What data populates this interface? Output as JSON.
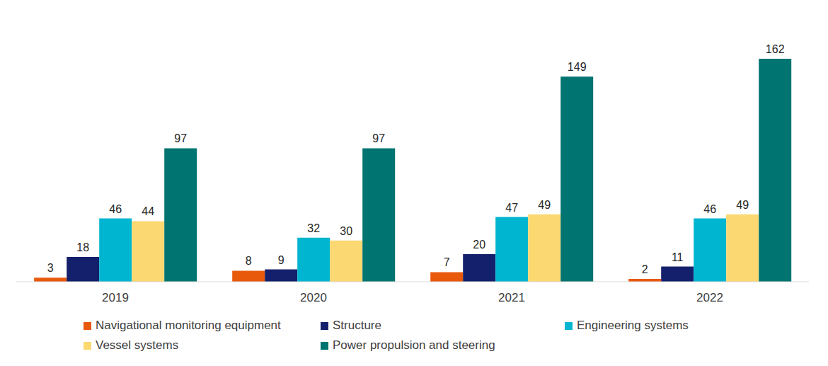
{
  "chart_data": {
    "type": "bar",
    "categories": [
      "2019",
      "2020",
      "2021",
      "2022"
    ],
    "series": [
      {
        "name": "Navigational monitoring equipment",
        "color": "#e8590c",
        "values": [
          3,
          8,
          7,
          2
        ]
      },
      {
        "name": "Structure",
        "color": "#14206b",
        "values": [
          18,
          9,
          20,
          11
        ]
      },
      {
        "name": "Engineering systems",
        "color": "#00b5cf",
        "values": [
          46,
          32,
          47,
          46
        ]
      },
      {
        "name": "Vessel systems",
        "color": "#fcd872",
        "values": [
          44,
          30,
          49,
          49
        ]
      },
      {
        "name": "Power propulsion and steering",
        "color": "#007470",
        "values": [
          97,
          97,
          149,
          162
        ]
      }
    ],
    "data_labels": true,
    "grid": false,
    "tick_labels": "x",
    "legend": "bottom"
  }
}
